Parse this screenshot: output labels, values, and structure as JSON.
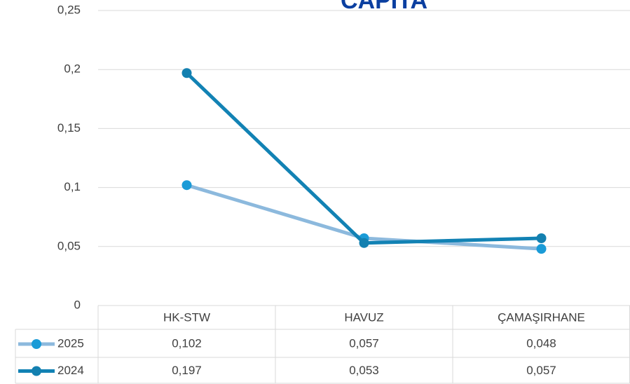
{
  "chart_data": {
    "type": "line",
    "title": "CAPITA",
    "categories": [
      "HK-STW",
      "HAVUZ",
      "ÇAMAŞIRHANE"
    ],
    "series": [
      {
        "name": "2025",
        "color": "#8cb9dd",
        "marker_color": "#1a9bd7",
        "values": [
          0.102,
          0.057,
          0.048
        ],
        "value_labels": [
          "0,102",
          "0,057",
          "0,048"
        ]
      },
      {
        "name": "2024",
        "color": "#1282b4",
        "marker_color": "#1380b0",
        "values": [
          0.197,
          0.053,
          0.057
        ],
        "value_labels": [
          "0,197",
          "0,053",
          "0,057"
        ]
      }
    ],
    "ylim": [
      0,
      0.25
    ],
    "yticks": [
      0,
      {
        "value": 0.05,
        "label": "0,05"
      },
      {
        "value": 0.1,
        "label": "0,1"
      },
      {
        "value": 0.15,
        "label": "0,15"
      },
      {
        "value": 0.2,
        "label": "0,2"
      },
      {
        "value": 0.25,
        "label": "0,25"
      }
    ],
    "grid": true,
    "data_table": true
  }
}
